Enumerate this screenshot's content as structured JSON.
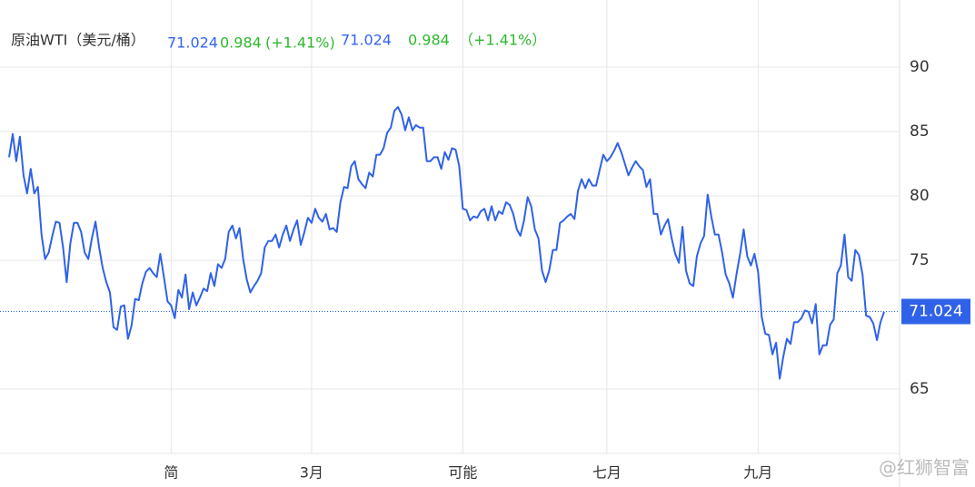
{
  "chart_data": {
    "type": "line",
    "title": "原油WTI（美元/桶）",
    "last_value": 71.024,
    "change": 0.984,
    "change_pct": "(+1.41%)",
    "change_pct_repeat": "（+1.41%）",
    "watermark": "@红狮智富",
    "series": [
      {
        "name": "WTI",
        "color": "#2f62e8",
        "values": [
          83.0,
          84.8,
          82.7,
          84.6,
          81.6,
          80.2,
          82.1,
          80.2,
          80.7,
          77.0,
          75.1,
          75.6,
          76.9,
          78.0,
          77.9,
          76.0,
          73.3,
          76.3,
          77.9,
          77.9,
          77.2,
          75.6,
          75.1,
          76.7,
          78.0,
          76.0,
          74.4,
          73.3,
          72.5,
          69.8,
          69.6,
          71.4,
          71.5,
          68.9,
          69.9,
          72.0,
          71.9,
          73.2,
          74.1,
          74.4,
          74.0,
          73.7,
          75.5,
          73.7,
          71.8,
          71.5,
          70.5,
          72.7,
          72.1,
          73.9,
          71.2,
          72.5,
          71.5,
          72.1,
          72.8,
          72.6,
          74.0,
          73.0,
          74.7,
          74.4,
          75.1,
          77.2,
          77.7,
          76.7,
          77.5,
          75.1,
          73.5,
          72.5,
          73.0,
          73.4,
          74.0,
          76.0,
          76.5,
          76.5,
          77.0,
          76.0,
          77.0,
          77.7,
          76.5,
          77.4,
          78.1,
          76.2,
          77.2,
          78.3,
          77.9,
          79.0,
          78.3,
          78.0,
          78.6,
          77.4,
          77.5,
          77.2,
          79.5,
          80.7,
          80.6,
          82.3,
          82.7,
          81.3,
          80.9,
          80.6,
          81.8,
          81.5,
          83.2,
          83.2,
          83.7,
          84.9,
          85.3,
          86.6,
          86.9,
          86.3,
          85.1,
          86.1,
          85.1,
          85.5,
          85.3,
          85.3,
          82.7,
          82.7,
          83.0,
          83.0,
          82.1,
          83.4,
          82.8,
          83.7,
          83.6,
          82.3,
          79.0,
          78.9,
          78.1,
          78.4,
          78.3,
          78.8,
          79.0,
          78.1,
          79.2,
          78.1,
          78.8,
          78.6,
          79.5,
          79.3,
          78.6,
          77.4,
          76.9,
          78.1,
          79.9,
          79.2,
          77.4,
          76.7,
          74.2,
          73.3,
          74.2,
          75.8,
          75.8,
          77.9,
          78.1,
          78.4,
          78.6,
          78.2,
          80.4,
          81.3,
          80.6,
          81.3,
          80.8,
          80.8,
          82.0,
          83.2,
          82.7,
          83.0,
          83.5,
          84.1,
          83.4,
          82.5,
          81.6,
          82.2,
          82.7,
          82.3,
          82.0,
          80.7,
          81.3,
          78.6,
          78.6,
          77.0,
          77.7,
          78.2,
          76.7,
          75.5,
          74.8,
          77.6,
          74.2,
          73.2,
          73.0,
          75.3,
          76.3,
          76.9,
          80.1,
          78.4,
          77.0,
          77.0,
          75.6,
          73.9,
          73.2,
          72.1,
          73.9,
          75.5,
          77.4,
          75.3,
          74.6,
          75.5,
          74.1,
          70.6,
          69.3,
          69.2,
          67.7,
          68.6,
          65.8,
          67.5,
          68.9,
          68.5,
          70.2,
          70.2,
          70.5,
          71.1,
          71.0,
          70.1,
          71.6,
          67.7,
          68.4,
          68.4,
          70.0,
          70.4,
          74.0,
          74.6,
          77.0,
          73.7,
          73.4,
          75.8,
          75.4,
          73.9,
          70.7,
          70.6,
          70.1,
          68.8,
          70.2,
          71.0
        ]
      }
    ],
    "xlim": [
      0,
      243
    ],
    "xticks": [
      {
        "value": 45,
        "label": "简"
      },
      {
        "value": 84,
        "label": "3月"
      },
      {
        "value": 126,
        "label": "可能"
      },
      {
        "value": 166,
        "label": "七月"
      },
      {
        "value": 208,
        "label": "九月"
      }
    ],
    "ylim": [
      60,
      95
    ],
    "yticks": [
      65,
      75,
      80,
      85,
      90
    ],
    "grid": true
  }
}
